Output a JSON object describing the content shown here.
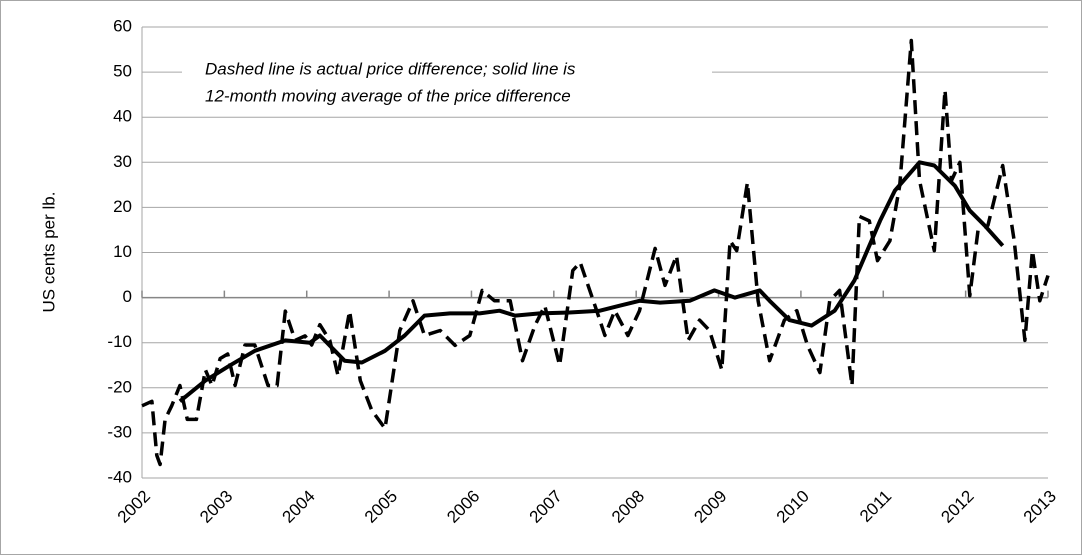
{
  "chart_data": {
    "type": "line",
    "ylabel": "US cents per lb.",
    "annotation": [
      "Dashed line is actual price difference; solid line is",
      "12-month moving average of the price difference"
    ],
    "xlim": [
      2002,
      2013
    ],
    "xticks": [
      2002,
      2003,
      2004,
      2005,
      2006,
      2007,
      2008,
      2009,
      2010,
      2011,
      2012,
      2013
    ],
    "ylim": [
      -40,
      60
    ],
    "yticks": [
      -40,
      -30,
      -20,
      -10,
      0,
      10,
      20,
      30,
      40,
      50,
      60
    ],
    "grid": true,
    "series": [
      {
        "color": "#000000",
        "dashed": true,
        "x": [
          2002.0,
          2002.12,
          2002.18,
          2002.22,
          2002.28,
          2002.36,
          2002.46,
          2002.55,
          2002.66,
          2002.77,
          2002.85,
          2002.95,
          2003.04,
          2003.13,
          2003.25,
          2003.37,
          2003.53,
          2003.64,
          2003.74,
          2003.86,
          2003.98,
          2004.06,
          2004.16,
          2004.28,
          2004.38,
          2004.52,
          2004.65,
          2004.79,
          2004.95,
          2005.13,
          2005.29,
          2005.43,
          2005.62,
          2005.8,
          2005.98,
          2006.13,
          2006.28,
          2006.47,
          2006.62,
          2006.77,
          2006.89,
          2007.07,
          2007.23,
          2007.32,
          2007.5,
          2007.62,
          2007.74,
          2007.9,
          2008.04,
          2008.23,
          2008.35,
          2008.49,
          2008.63,
          2008.77,
          2008.89,
          2009.04,
          2009.14,
          2009.22,
          2009.35,
          2009.48,
          2009.62,
          2009.8,
          2009.95,
          2010.08,
          2010.23,
          2010.35,
          2010.47,
          2010.62,
          2010.71,
          2010.83,
          2010.93,
          2011.08,
          2011.2,
          2011.34,
          2011.44,
          2011.62,
          2011.75,
          2011.83,
          2011.93,
          2012.05,
          2012.15,
          2012.27,
          2012.45,
          2012.59,
          2012.72,
          2012.81,
          2012.9,
          2013.0
        ],
        "values": [
          -24,
          -23,
          -35,
          -37,
          -27,
          -24,
          -19.5,
          -27,
          -27,
          -16,
          -19.5,
          -13.5,
          -12.5,
          -19.5,
          -10.5,
          -10.5,
          -19.5,
          -19.5,
          -3,
          -9.5,
          -8.5,
          -10.5,
          -6,
          -9.5,
          -17.3,
          -3,
          -18.4,
          -25,
          -29,
          -7.3,
          -0.7,
          -8.4,
          -7.3,
          -10.6,
          -8.4,
          1.6,
          -0.7,
          -0.7,
          -14,
          -6.2,
          -1.8,
          -15,
          6,
          7.8,
          -1.8,
          -8.4,
          -2.9,
          -8.4,
          -2.9,
          10.9,
          2.7,
          9.3,
          -9.5,
          -5,
          -7.3,
          -16,
          12.6,
          10.4,
          25.5,
          -0.7,
          -14,
          -5,
          -2.9,
          -10.6,
          -16.6,
          -0.7,
          1.6,
          -19.5,
          18,
          17,
          8.2,
          12.6,
          24.8,
          57,
          26,
          10.4,
          46,
          26,
          30,
          0.4,
          14.9,
          16,
          29.3,
          12.6,
          -9.5,
          10.4,
          -0.7,
          4.9
        ]
      },
      {
        "color": "#000000",
        "dashed": false,
        "x": [
          2002.46,
          2002.77,
          2003.07,
          2003.37,
          2003.74,
          2004.04,
          2004.16,
          2004.46,
          2004.67,
          2004.95,
          2005.19,
          2005.43,
          2005.74,
          2006.1,
          2006.34,
          2006.53,
          2006.83,
          2007.19,
          2007.56,
          2007.8,
          2008.04,
          2008.29,
          2008.65,
          2008.95,
          2009.2,
          2009.5,
          2009.62,
          2009.86,
          2010.13,
          2010.41,
          2010.65,
          2010.96,
          2011.14,
          2011.44,
          2011.62,
          2011.87,
          2012.05,
          2012.23,
          2012.45
        ],
        "values": [
          -23,
          -18.4,
          -15,
          -11.8,
          -9.5,
          -10,
          -8.4,
          -14,
          -14.4,
          -11.8,
          -8.4,
          -4,
          -3.5,
          -3.5,
          -2.9,
          -4,
          -3.5,
          -3.3,
          -2.9,
          -1.8,
          -0.7,
          -1.1,
          -0.7,
          1.6,
          0,
          1.6,
          -0.7,
          -5,
          -6.2,
          -2.9,
          3.8,
          17,
          23.7,
          30,
          29.3,
          24.8,
          19.3,
          16,
          11.5
        ]
      }
    ]
  }
}
